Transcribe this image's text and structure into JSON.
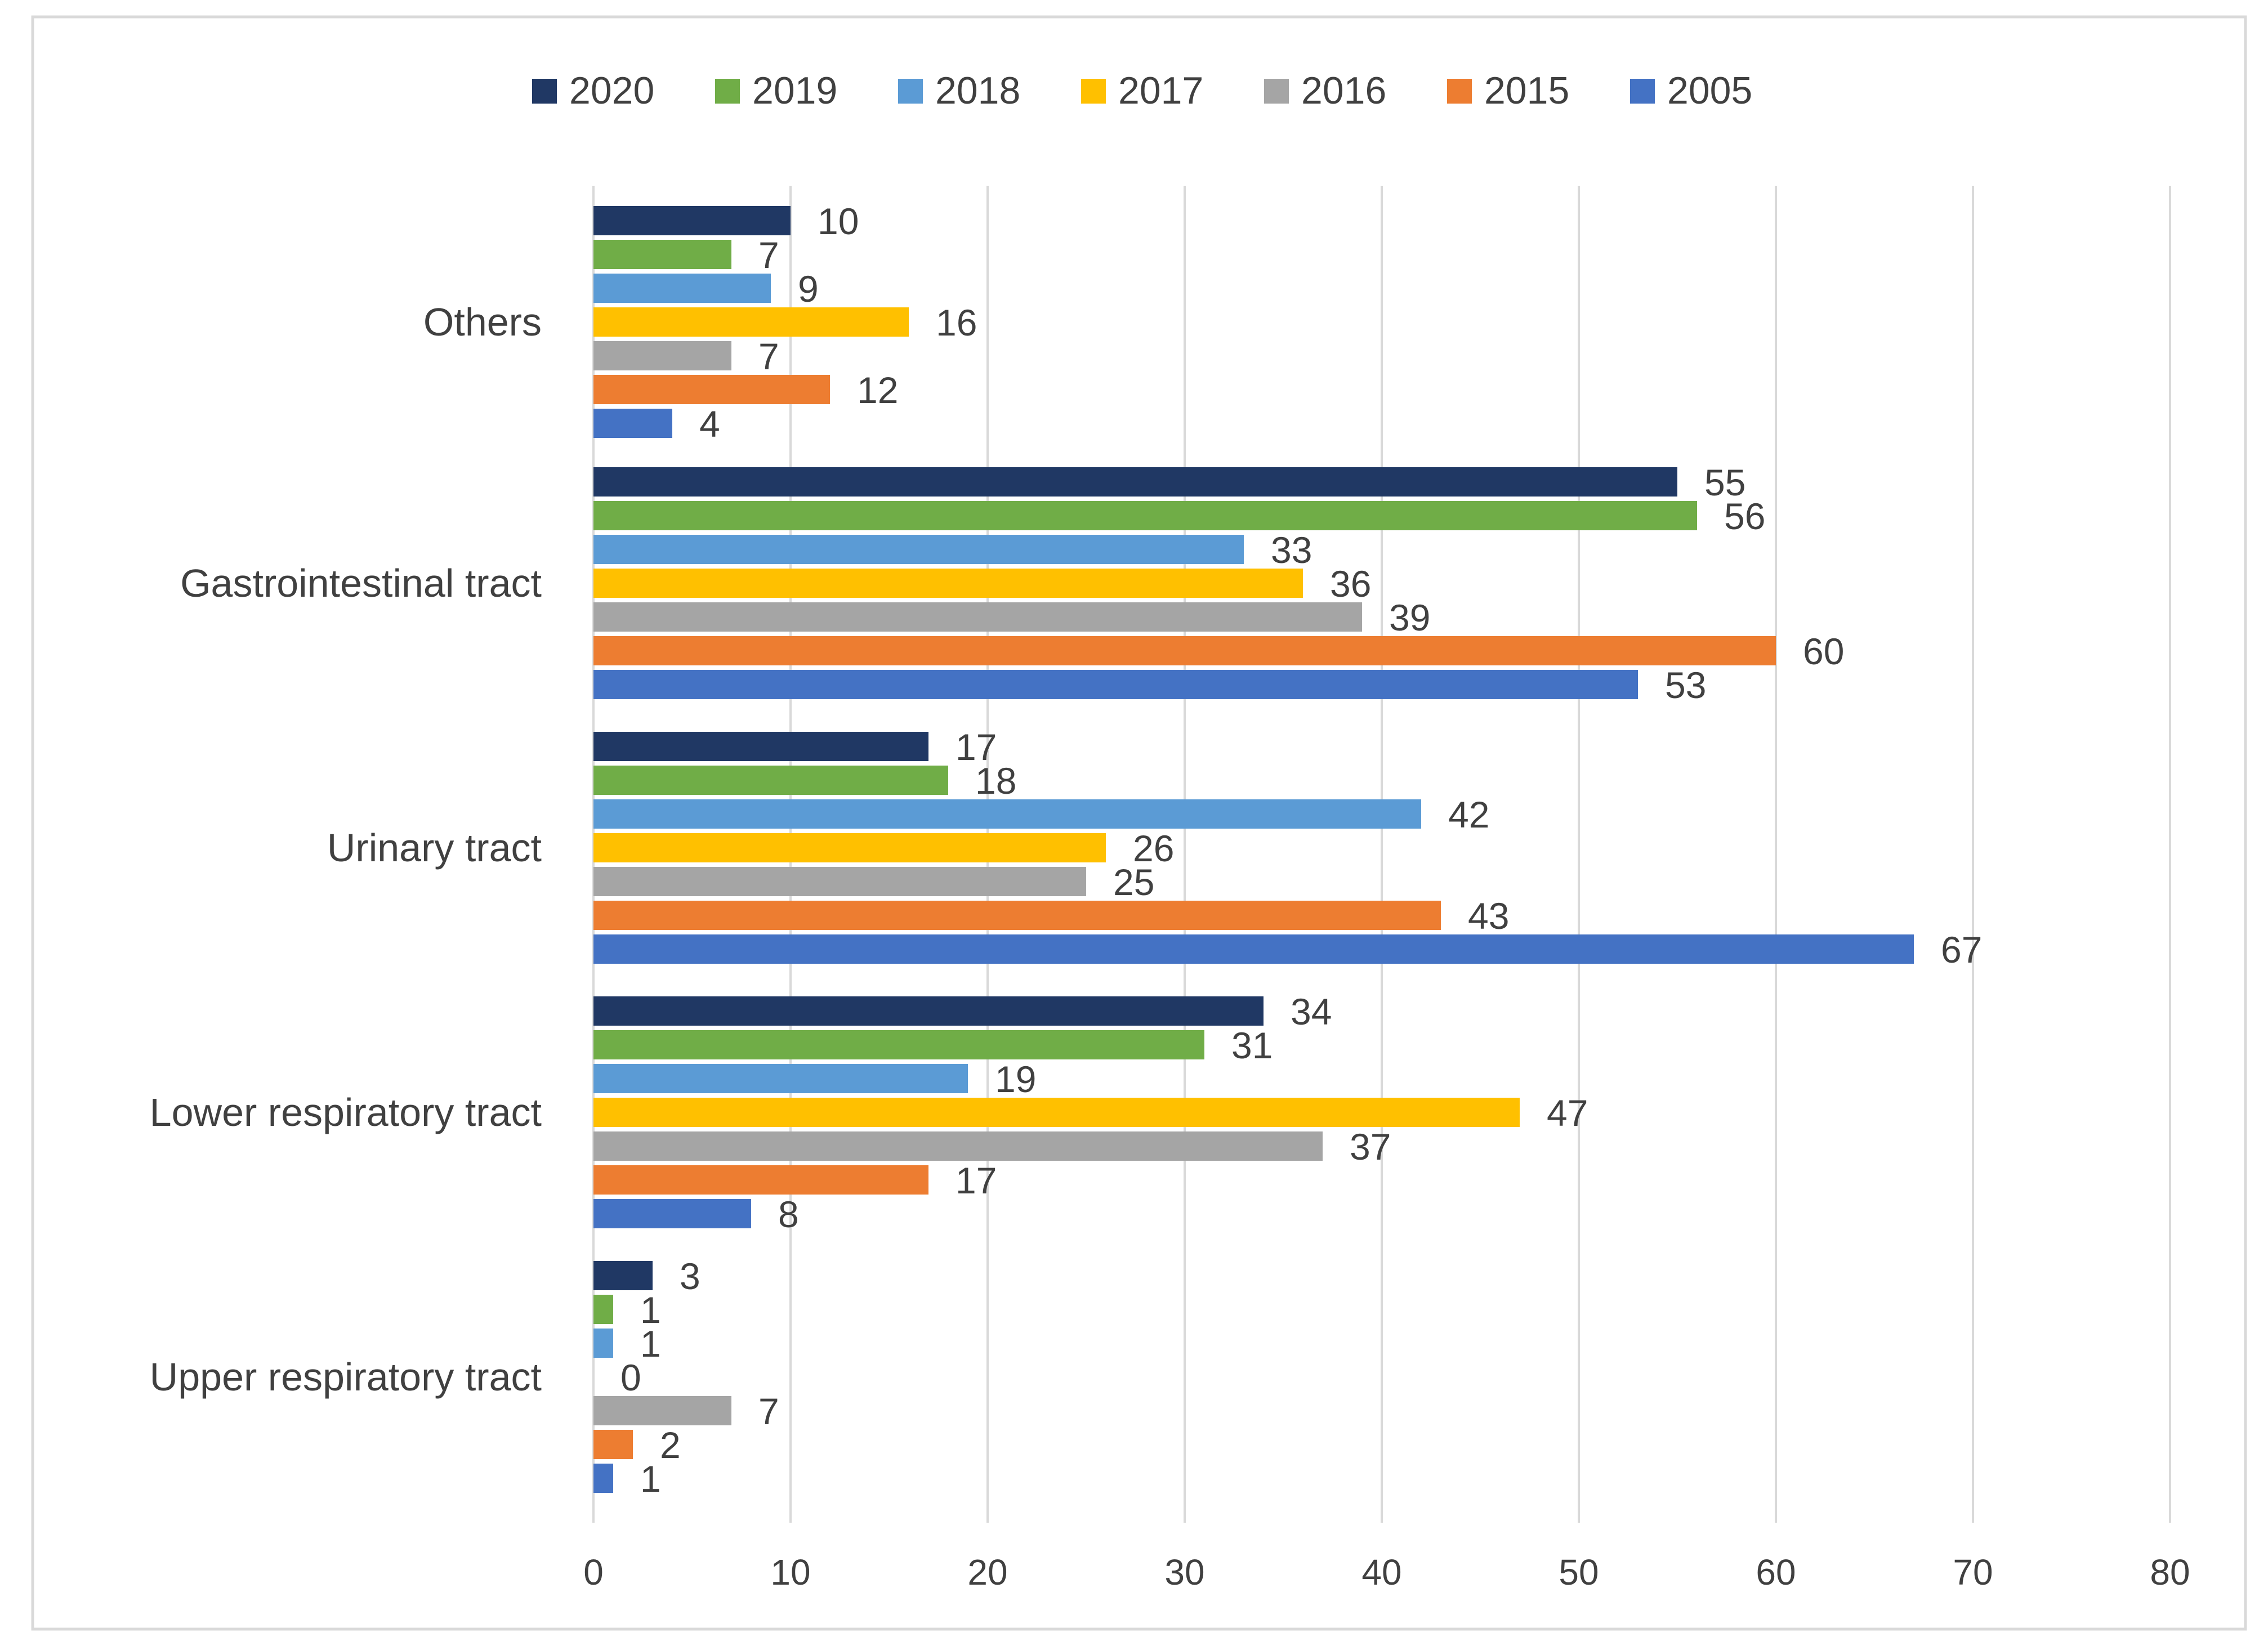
{
  "chart_data": {
    "type": "bar",
    "orientation": "horizontal",
    "title": "",
    "xlabel": "",
    "ylabel": "",
    "xlim": [
      0,
      80
    ],
    "x_ticks": [
      0,
      10,
      20,
      30,
      40,
      50,
      60,
      70,
      80
    ],
    "grid": true,
    "legend_position": "top",
    "categories": [
      "Others",
      "Gastrointestinal tract",
      "Urinary tract",
      "Lower respiratory tract",
      "Upper respiratory tract"
    ],
    "series": [
      {
        "name": "2020",
        "color": "#203864",
        "values": [
          10,
          55,
          17,
          34,
          3
        ]
      },
      {
        "name": "2019",
        "color": "#70AD47",
        "values": [
          7,
          56,
          18,
          31,
          1
        ]
      },
      {
        "name": "2018",
        "color": "#5B9BD5",
        "values": [
          9,
          33,
          42,
          19,
          1
        ]
      },
      {
        "name": "2017",
        "color": "#FFC000",
        "values": [
          16,
          36,
          26,
          47,
          0
        ]
      },
      {
        "name": "2016",
        "color": "#A5A5A5",
        "values": [
          7,
          39,
          25,
          37,
          7
        ]
      },
      {
        "name": "2015",
        "color": "#ED7D31",
        "values": [
          12,
          60,
          43,
          17,
          2
        ]
      },
      {
        "name": "2005",
        "color": "#4472C4",
        "values": [
          4,
          53,
          67,
          8,
          1
        ]
      }
    ]
  }
}
